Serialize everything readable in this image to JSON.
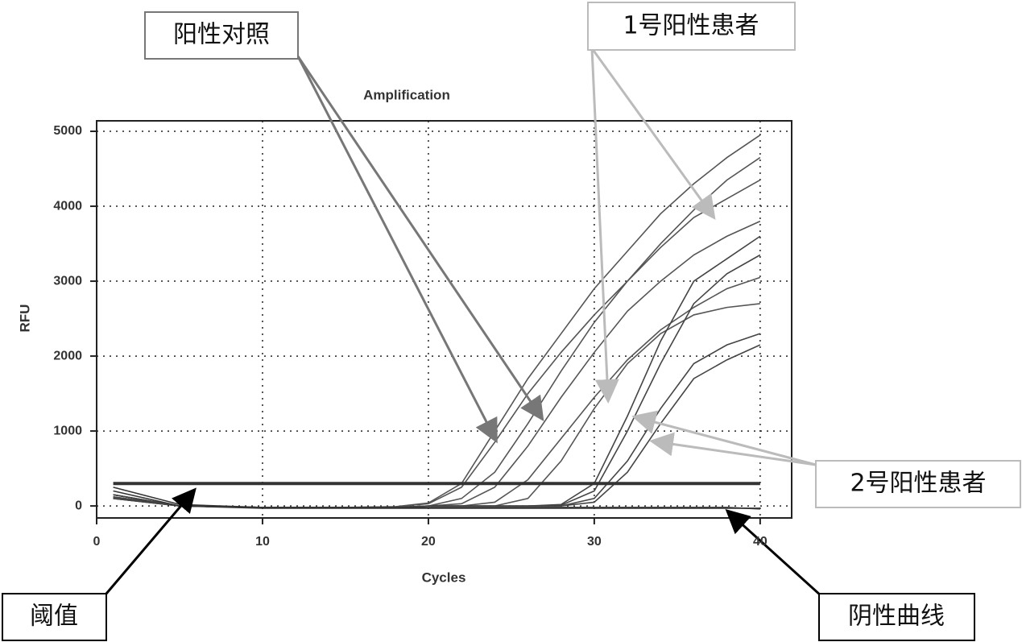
{
  "chart_data": {
    "type": "line",
    "title": "Amplification",
    "xlabel": "Cycles",
    "ylabel": "RFU",
    "x": [
      1,
      5,
      10,
      15,
      18,
      20,
      22,
      24,
      26,
      28,
      30,
      32,
      34,
      36,
      38,
      40
    ],
    "xlim": [
      0,
      41.9
    ],
    "ylim": [
      -160,
      5140
    ],
    "xticks": [
      0,
      10,
      20,
      30,
      40
    ],
    "yticks": [
      0,
      1000,
      2000,
      3000,
      4000,
      5000
    ],
    "grid": true,
    "threshold": 300,
    "series": [
      {
        "color": "#555555",
        "values": [
          150,
          0,
          -20,
          -20,
          -10,
          40,
          300,
          1000,
          1700,
          2300,
          2900,
          3400,
          3900,
          4300,
          4650,
          4950
        ]
      },
      {
        "color": "#555555",
        "values": [
          100,
          0,
          -20,
          -20,
          -10,
          30,
          250,
          850,
          1500,
          2050,
          2550,
          3000,
          3500,
          3950,
          4350,
          4650
        ]
      },
      {
        "color": "#555555",
        "values": [
          150,
          0,
          -20,
          -20,
          -20,
          0,
          100,
          450,
          1100,
          1800,
          2450,
          3000,
          3450,
          3850,
          4100,
          4350
        ]
      },
      {
        "color": "#555555",
        "values": [
          120,
          0,
          -20,
          -20,
          -20,
          0,
          30,
          250,
          800,
          1450,
          2050,
          2600,
          3000,
          3350,
          3600,
          3800
        ]
      },
      {
        "color": "#555555",
        "values": [
          120,
          0,
          -20,
          -20,
          -20,
          0,
          0,
          50,
          350,
          900,
          1450,
          1950,
          2350,
          2650,
          2900,
          3050
        ]
      },
      {
        "color": "#555555",
        "values": [
          100,
          0,
          -20,
          -20,
          -20,
          0,
          0,
          0,
          100,
          600,
          1300,
          1900,
          2300,
          2550,
          2650,
          2700
        ]
      },
      {
        "color": "#444444",
        "values": [
          150,
          0,
          -20,
          -20,
          -20,
          0,
          0,
          0,
          0,
          20,
          300,
          1200,
          2200,
          3000,
          3300,
          3600
        ]
      },
      {
        "color": "#444444",
        "values": [
          150,
          0,
          -20,
          -20,
          -20,
          0,
          0,
          0,
          0,
          10,
          200,
          1000,
          1900,
          2700,
          3100,
          3350
        ]
      },
      {
        "color": "#444444",
        "values": [
          120,
          0,
          -20,
          -20,
          -20,
          0,
          0,
          0,
          0,
          0,
          100,
          600,
          1300,
          1900,
          2150,
          2300
        ]
      },
      {
        "color": "#444444",
        "values": [
          100,
          0,
          -20,
          -20,
          -20,
          0,
          0,
          0,
          0,
          0,
          50,
          450,
          1100,
          1700,
          1950,
          2150
        ]
      },
      {
        "color": "#333333",
        "values": [
          200,
          0,
          -30,
          -30,
          -30,
          -30,
          -30,
          -30,
          -30,
          -30,
          -30,
          -30,
          -30,
          -30,
          -30,
          -30
        ]
      },
      {
        "color": "#333333",
        "values": [
          250,
          20,
          -20,
          -20,
          -20,
          -20,
          -20,
          -20,
          -20,
          -20,
          -20,
          -20,
          -20,
          -20,
          -20,
          -40
        ]
      }
    ],
    "annotations": [
      "阳性对照",
      "1号阳性患者",
      "2号阳性患者",
      "阈值",
      "阴性曲线"
    ]
  }
}
